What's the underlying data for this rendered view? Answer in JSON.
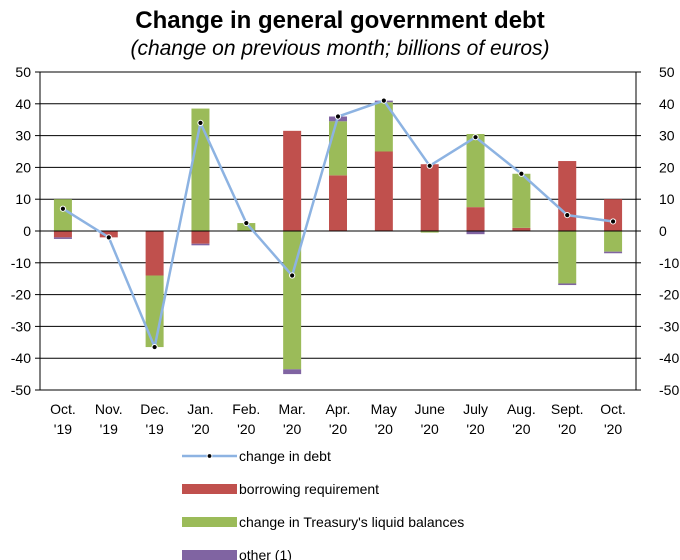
{
  "chart_data": {
    "type": "bar",
    "title": "Change in general government debt",
    "subtitle": "(change on previous month; billions of euros)",
    "categories": [
      [
        "Oct.",
        "'19"
      ],
      [
        "Nov.",
        "'19"
      ],
      [
        "Dec.",
        "'19"
      ],
      [
        "Jan.",
        "'20"
      ],
      [
        "Feb.",
        "'20"
      ],
      [
        "Mar.",
        "'20"
      ],
      [
        "Apr.",
        "'20"
      ],
      [
        "May",
        "'20"
      ],
      [
        "June",
        "'20"
      ],
      [
        "July",
        "'20"
      ],
      [
        "Aug.",
        "'20"
      ],
      [
        "Sept.",
        "'20"
      ],
      [
        "Oct.",
        "'20"
      ]
    ],
    "ylim": [
      -50,
      50
    ],
    "yticks": [
      50,
      40,
      30,
      20,
      10,
      0,
      -10,
      -20,
      -30,
      -40,
      -50
    ],
    "ytick_labels": [
      "50",
      "40",
      "30",
      "20",
      "10",
      "0",
      "-10",
      "-20",
      "-30",
      "-40",
      "-50"
    ],
    "grid": true,
    "legend_position": "bottom",
    "series": [
      {
        "name": "borrowing requirement",
        "kind": "bar",
        "color": "#c0504d",
        "values": [
          -2,
          -2,
          -14,
          -4,
          0,
          31.5,
          17.5,
          25,
          21,
          7.5,
          1,
          22,
          10
        ]
      },
      {
        "name": "change in Treasury's liquid balances",
        "kind": "bar",
        "color": "#9bbb59",
        "values": [
          10,
          0,
          -22.5,
          38.5,
          2.5,
          -43.5,
          17,
          15.5,
          -0.5,
          23,
          17,
          -16.5,
          -6.5
        ]
      },
      {
        "name": "other (1)",
        "kind": "bar",
        "color": "#8064a2",
        "values": [
          -0.5,
          0,
          0,
          -0.5,
          0,
          -1.5,
          1.5,
          0.5,
          0,
          -1,
          0,
          -0.5,
          -0.5
        ]
      },
      {
        "name": "change in debt",
        "kind": "line",
        "color": "#8db3e2",
        "marker_color": "#000000",
        "values": [
          7,
          -2,
          -36.5,
          34,
          2.5,
          -14,
          36,
          41,
          20.5,
          29.5,
          18,
          5,
          3
        ]
      }
    ]
  }
}
